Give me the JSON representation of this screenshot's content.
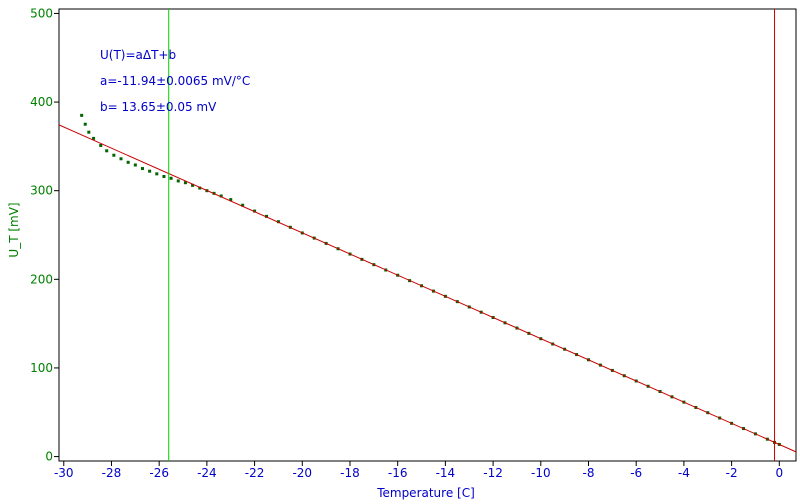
{
  "chart_data": {
    "type": "scatter",
    "title": "",
    "xlabel": "Temperature [C]",
    "ylabel": "U_T [mV]",
    "xlim": [
      -30.2,
      0.7
    ],
    "ylim": [
      -5,
      505
    ],
    "x_ticks": [
      -30,
      -28,
      -26,
      -24,
      -22,
      -20,
      -18,
      -16,
      -14,
      -12,
      -10,
      -8,
      -6,
      -4,
      -2,
      0
    ],
    "x_tick_labels": [
      "-30",
      "-28",
      "-26",
      "-24",
      "-22",
      "-20",
      "-18",
      "-16",
      "-14",
      "-12",
      "-10",
      "-8",
      "-6",
      "-4",
      "-2",
      "0"
    ],
    "y_ticks": [
      0,
      100,
      200,
      300,
      400,
      500
    ],
    "y_tick_labels": [
      "0",
      "100",
      "200",
      "300",
      "400",
      "500"
    ],
    "grid": false,
    "annotations": {
      "formula": "U(T)=aΔT+b",
      "a": "a=-11.94±0.0065 mV/°C",
      "b": "b= 13.65±0.05 mV"
    },
    "fit": {
      "slope": -11.94,
      "intercept": 13.65,
      "color": "#c80000"
    },
    "vertical_lines": [
      {
        "x": -25.6,
        "color": "#00d000"
      },
      {
        "x": -0.2,
        "color": "#c80000"
      }
    ],
    "series": [
      {
        "color": "#006400",
        "points": [
          [
            -29.25,
            385
          ],
          [
            -29.1,
            375
          ],
          [
            -28.95,
            366
          ],
          [
            -28.75,
            359
          ],
          [
            -28.45,
            351
          ],
          [
            -28.2,
            345
          ],
          [
            -27.9,
            340
          ],
          [
            -27.6,
            336
          ],
          [
            -27.3,
            332
          ],
          [
            -27.0,
            329
          ],
          [
            -26.7,
            325
          ],
          [
            -26.4,
            322
          ],
          [
            -26.1,
            319
          ],
          [
            -25.8,
            316
          ],
          [
            -25.5,
            314
          ],
          [
            -25.2,
            311
          ],
          [
            -24.9,
            309
          ],
          [
            -24.6,
            306
          ],
          [
            -24.3,
            303
          ],
          [
            -24.0,
            300
          ],
          [
            -23.7,
            297
          ],
          [
            -23.4,
            294
          ],
          [
            -23.0,
            289.9
          ],
          [
            -22.5,
            283.6
          ],
          [
            -22.0,
            277.0
          ],
          [
            -21.5,
            271.0
          ],
          [
            -21.0,
            265.0
          ],
          [
            -20.5,
            258.7
          ],
          [
            -20.0,
            252.3
          ],
          [
            -19.5,
            246.5
          ],
          [
            -19.0,
            240.5
          ],
          [
            -18.5,
            234.5
          ],
          [
            -18.0,
            228.5
          ],
          [
            -17.5,
            222.5
          ],
          [
            -17.0,
            216.5
          ],
          [
            -16.5,
            210.5
          ],
          [
            -16.0,
            204.6
          ],
          [
            -15.5,
            198.5
          ],
          [
            -15.0,
            192.7
          ],
          [
            -14.5,
            186.7
          ],
          [
            -14.0,
            180.8
          ],
          [
            -13.5,
            174.8
          ],
          [
            -13.0,
            168.8
          ],
          [
            -12.5,
            162.9
          ],
          [
            -12.0,
            156.9
          ],
          [
            -11.5,
            150.9
          ],
          [
            -11.0,
            145.0
          ],
          [
            -10.5,
            139.0
          ],
          [
            -10.0,
            133.0
          ],
          [
            -9.5,
            127.0
          ],
          [
            -9.0,
            121.1
          ],
          [
            -8.5,
            115.1
          ],
          [
            -8.0,
            109.2
          ],
          [
            -7.5,
            103.2
          ],
          [
            -7.0,
            97.2
          ],
          [
            -6.5,
            91.2
          ],
          [
            -6.0,
            85.3
          ],
          [
            -5.5,
            79.3
          ],
          [
            -5.0,
            73.4
          ],
          [
            -4.5,
            67.4
          ],
          [
            -4.0,
            61.4
          ],
          [
            -3.5,
            55.4
          ],
          [
            -3.0,
            49.5
          ],
          [
            -2.5,
            43.5
          ],
          [
            -2.0,
            37.5
          ],
          [
            -1.5,
            31.6
          ],
          [
            -1.0,
            25.6
          ],
          [
            -0.5,
            19.6
          ],
          [
            -0.2,
            16.0
          ],
          [
            0.0,
            13.7
          ]
        ]
      }
    ]
  }
}
